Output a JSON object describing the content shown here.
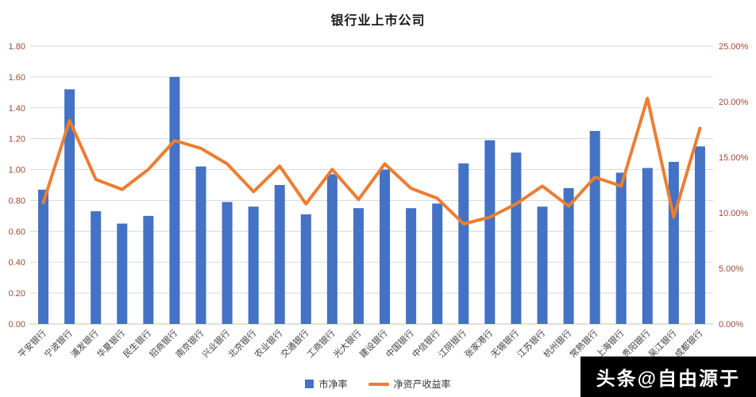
{
  "watermark": {
    "text": "头条@自由源于"
  },
  "chart_data": {
    "type": "combo",
    "title": "银行业上市公司",
    "legend_position": "bottom",
    "grid": true,
    "categories": [
      "平安银行",
      "宁波银行",
      "浦发银行",
      "华夏银行",
      "民生银行",
      "招商银行",
      "南京银行",
      "兴业银行",
      "北京银行",
      "农业银行",
      "交通银行",
      "工商银行",
      "光大银行",
      "建设银行",
      "中国银行",
      "中信银行",
      "江阴银行",
      "张家港行",
      "无锡银行",
      "江苏银行",
      "杭州银行",
      "常熟银行",
      "上海银行",
      "贵阳银行",
      "吴江银行",
      "成都银行"
    ],
    "series": [
      {
        "name": "市净率",
        "type": "bar",
        "axis": "left",
        "values": [
          0.87,
          1.52,
          0.73,
          0.65,
          0.7,
          1.6,
          1.02,
          0.79,
          0.76,
          0.9,
          0.71,
          0.97,
          0.75,
          1.0,
          0.75,
          0.78,
          1.04,
          1.19,
          1.11,
          0.76,
          0.88,
          1.25,
          0.98,
          1.01,
          1.05,
          1.15
        ]
      },
      {
        "name": "净资产收益率",
        "type": "line",
        "axis": "right",
        "values": [
          10.9,
          18.3,
          13.0,
          12.1,
          13.9,
          16.5,
          15.8,
          14.4,
          11.9,
          14.2,
          10.8,
          13.9,
          11.2,
          14.4,
          12.2,
          11.3,
          9.0,
          9.6,
          10.8,
          12.4,
          10.6,
          13.2,
          12.4,
          20.3,
          9.6,
          17.6
        ]
      }
    ],
    "left_axis": {
      "min": 0,
      "max": 1.8,
      "ticks": [
        "0.00",
        "0.20",
        "0.40",
        "0.60",
        "0.80",
        "1.00",
        "1.20",
        "1.40",
        "1.60",
        "1.80"
      ]
    },
    "right_axis": {
      "min": 0,
      "max": 25.0,
      "ticks": [
        "0.00%",
        "5.00%",
        "10.00%",
        "15.00%",
        "20.00%",
        "25.00%"
      ]
    },
    "colors": {
      "bar": "#4472C4",
      "line": "#ED7D31",
      "grid": "#D9D9D9",
      "baseline": "#BFBFBF",
      "axis_text": "#9C4B33",
      "category_text": "#3F3F3F"
    }
  }
}
